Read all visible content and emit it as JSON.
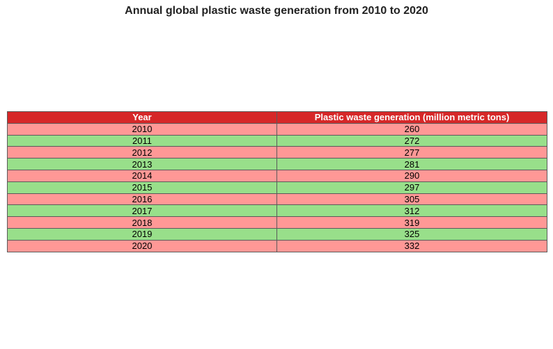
{
  "chart_data": {
    "type": "table",
    "title": "Annual global plastic waste generation from 2010 to 2020",
    "columns": [
      "Year",
      "Plastic waste generation (million metric tons)"
    ],
    "rows": [
      [
        "2010",
        "260"
      ],
      [
        "2011",
        "272"
      ],
      [
        "2012",
        "277"
      ],
      [
        "2013",
        "281"
      ],
      [
        "2014",
        "290"
      ],
      [
        "2015",
        "297"
      ],
      [
        "2016",
        "305"
      ],
      [
        "2017",
        "312"
      ],
      [
        "2018",
        "319"
      ],
      [
        "2019",
        "325"
      ],
      [
        "2020",
        "332"
      ]
    ],
    "colors": {
      "header_bg": "#d62728",
      "header_text": "#ffffff",
      "row_odd": "#ff9896",
      "row_even": "#98df8a"
    }
  }
}
